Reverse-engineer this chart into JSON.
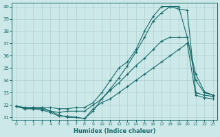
{
  "xlabel": "Humidex (Indice chaleur)",
  "ylabel": "",
  "bg_color": "#cce8e8",
  "grid_color": "#b0d0d0",
  "line_color": "#1a6b6b",
  "xlim": [
    -0.5,
    23.5
  ],
  "ylim": [
    30.8,
    40.3
  ],
  "yticks": [
    31,
    32,
    33,
    34,
    35,
    36,
    37,
    38,
    39,
    40
  ],
  "xticks": [
    0,
    1,
    2,
    3,
    4,
    5,
    6,
    7,
    8,
    9,
    10,
    11,
    12,
    13,
    14,
    15,
    16,
    17,
    18,
    19,
    20,
    21,
    22,
    23
  ],
  "lines": [
    {
      "x": [
        0,
        1,
        2,
        3,
        4,
        5,
        6,
        7,
        8,
        9,
        10,
        11,
        12,
        13,
        14,
        15,
        16,
        17,
        18,
        19,
        20,
        21,
        22,
        23
      ],
      "y": [
        31.9,
        31.8,
        31.8,
        31.8,
        31.8,
        31.7,
        31.7,
        31.8,
        31.8,
        32.2,
        33.0,
        34.0,
        35.0,
        35.5,
        36.5,
        38.0,
        39.2,
        40.0,
        40.0,
        39.8,
        39.7,
        33.0,
        32.8,
        32.7
      ]
    },
    {
      "x": [
        0,
        1,
        2,
        3,
        4,
        5,
        6,
        7,
        8,
        9,
        10,
        11,
        12,
        13,
        14,
        15,
        16,
        17,
        18,
        19,
        20,
        21,
        22,
        23
      ],
      "y": [
        31.9,
        31.8,
        31.8,
        31.8,
        31.5,
        31.4,
        31.5,
        31.5,
        31.5,
        32.0,
        32.5,
        33.2,
        33.8,
        34.5,
        35.2,
        35.8,
        36.5,
        37.2,
        37.5,
        37.5,
        37.5,
        34.0,
        33.0,
        32.8
      ]
    },
    {
      "x": [
        0,
        1,
        2,
        3,
        4,
        5,
        6,
        7,
        8,
        9,
        10,
        11,
        12,
        13,
        14,
        15,
        16,
        17,
        18,
        19,
        20,
        21,
        22,
        23
      ],
      "y": [
        31.9,
        31.7,
        31.7,
        31.7,
        31.5,
        31.2,
        31.0,
        31.0,
        30.9,
        31.5,
        32.5,
        33.3,
        34.2,
        35.2,
        36.3,
        37.5,
        38.8,
        39.5,
        40.0,
        40.0,
        37.5,
        34.5,
        33.1,
        32.8
      ]
    },
    {
      "x": [
        0,
        1,
        2,
        3,
        4,
        5,
        6,
        7,
        8,
        9,
        10,
        11,
        12,
        13,
        14,
        15,
        16,
        17,
        18,
        19,
        20,
        21,
        22,
        23
      ],
      "y": [
        31.9,
        31.7,
        31.7,
        31.6,
        31.4,
        31.1,
        31.1,
        31.0,
        30.9,
        31.7,
        32.2,
        32.5,
        33.0,
        33.5,
        34.0,
        34.5,
        35.0,
        35.5,
        36.0,
        36.5,
        37.0,
        32.8,
        32.6,
        32.5
      ]
    }
  ]
}
